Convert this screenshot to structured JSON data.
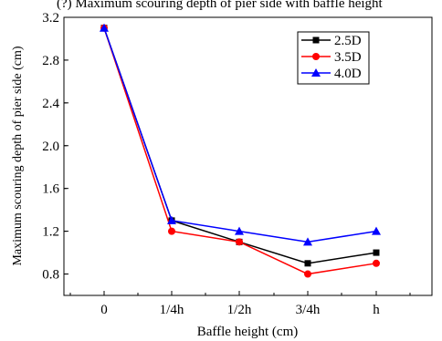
{
  "chart_data": {
    "type": "line",
    "title": "(?) Maximum scouring depth of pier side with baffle height",
    "xlabel": "Baffle height (cm)",
    "ylabel": "Maximum scouring depth of pier side (cm)",
    "categories": [
      "0",
      "1/4h",
      "1/2h",
      "3/4h",
      "h"
    ],
    "ylim": [
      0.6,
      3.2
    ],
    "yticks": [
      "0.8",
      "1.2",
      "1.6",
      "2.0",
      "2.4",
      "2.8",
      "3.2"
    ],
    "legend_position": "top-right",
    "series": [
      {
        "name": "2.5D",
        "color": "#000000",
        "marker": "square",
        "values": [
          3.1,
          1.3,
          1.1,
          0.9,
          1.0
        ]
      },
      {
        "name": "3.5D",
        "color": "#ff0000",
        "marker": "circle",
        "values": [
          3.1,
          1.2,
          1.1,
          0.8,
          0.9
        ]
      },
      {
        "name": "4.0D",
        "color": "#0000ff",
        "marker": "triangle",
        "values": [
          3.1,
          1.3,
          1.2,
          1.1,
          1.2
        ]
      }
    ]
  }
}
